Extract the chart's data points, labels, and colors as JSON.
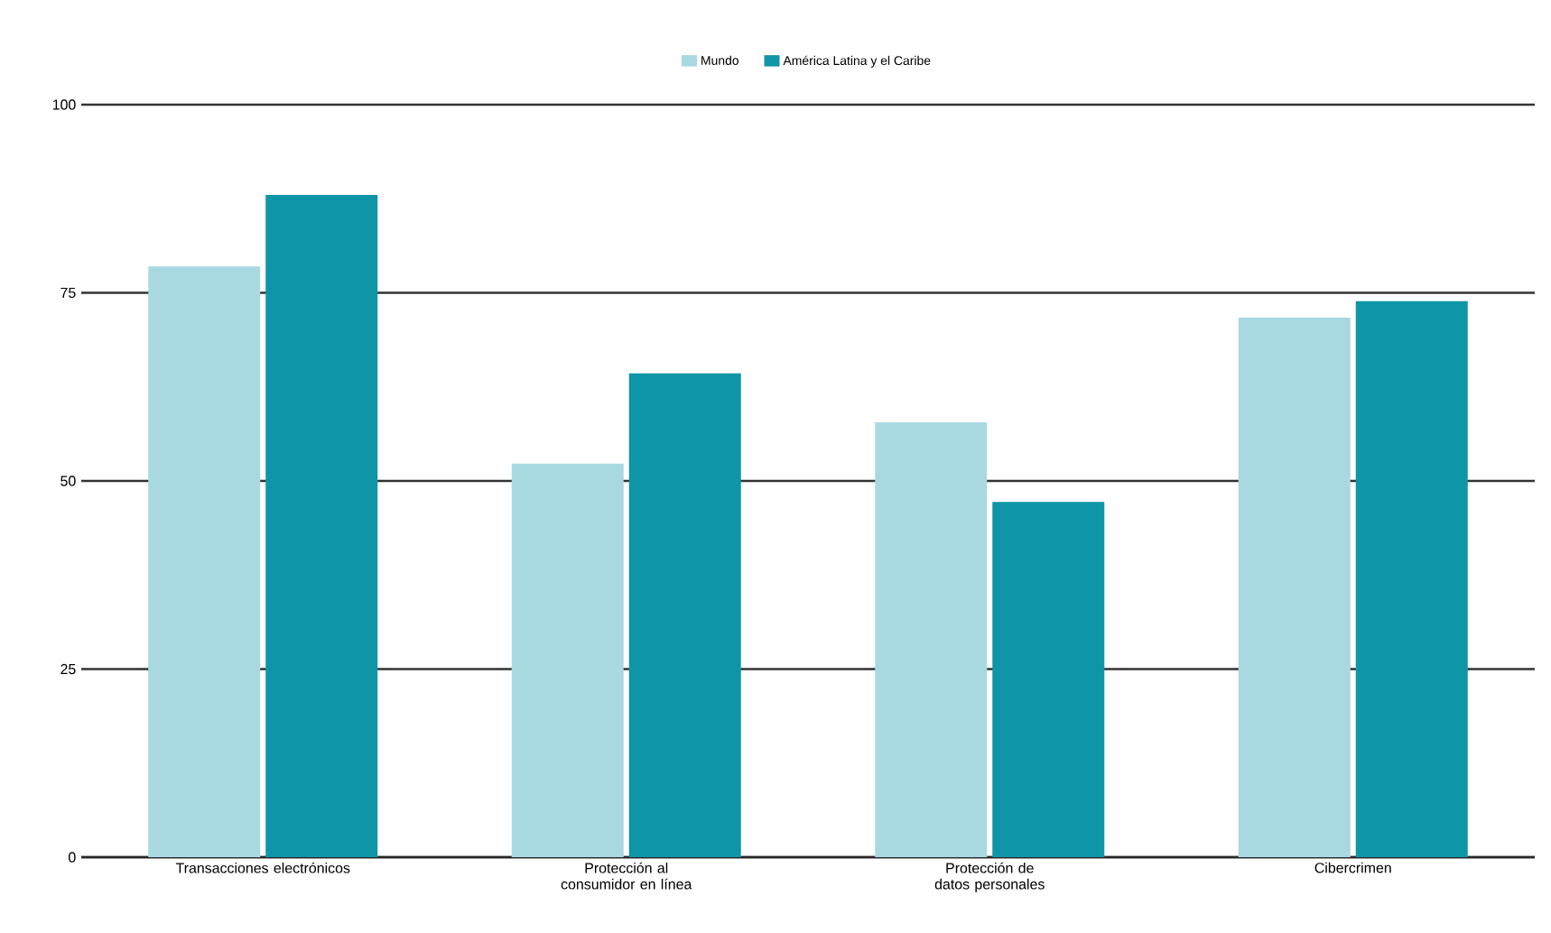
{
  "chart_data": {
    "type": "bar",
    "categories": [
      "Transacciones electrónicos",
      "Protección al consumidor en línea",
      "Protección de datos personales",
      "Cibercrimen"
    ],
    "series": [
      {
        "name": "Mundo",
        "color": "#a8d9e1",
        "values": [
          78.5,
          52.3,
          57.8,
          71.7
        ]
      },
      {
        "name": "América Latina y el Caribe",
        "color": "#0f95a8",
        "values": [
          88,
          64.3,
          47.2,
          73.9
        ]
      }
    ],
    "ylim": [
      0,
      100
    ],
    "yticks": [
      0,
      25,
      50,
      75,
      100
    ],
    "grid": "y",
    "legend": "top"
  }
}
